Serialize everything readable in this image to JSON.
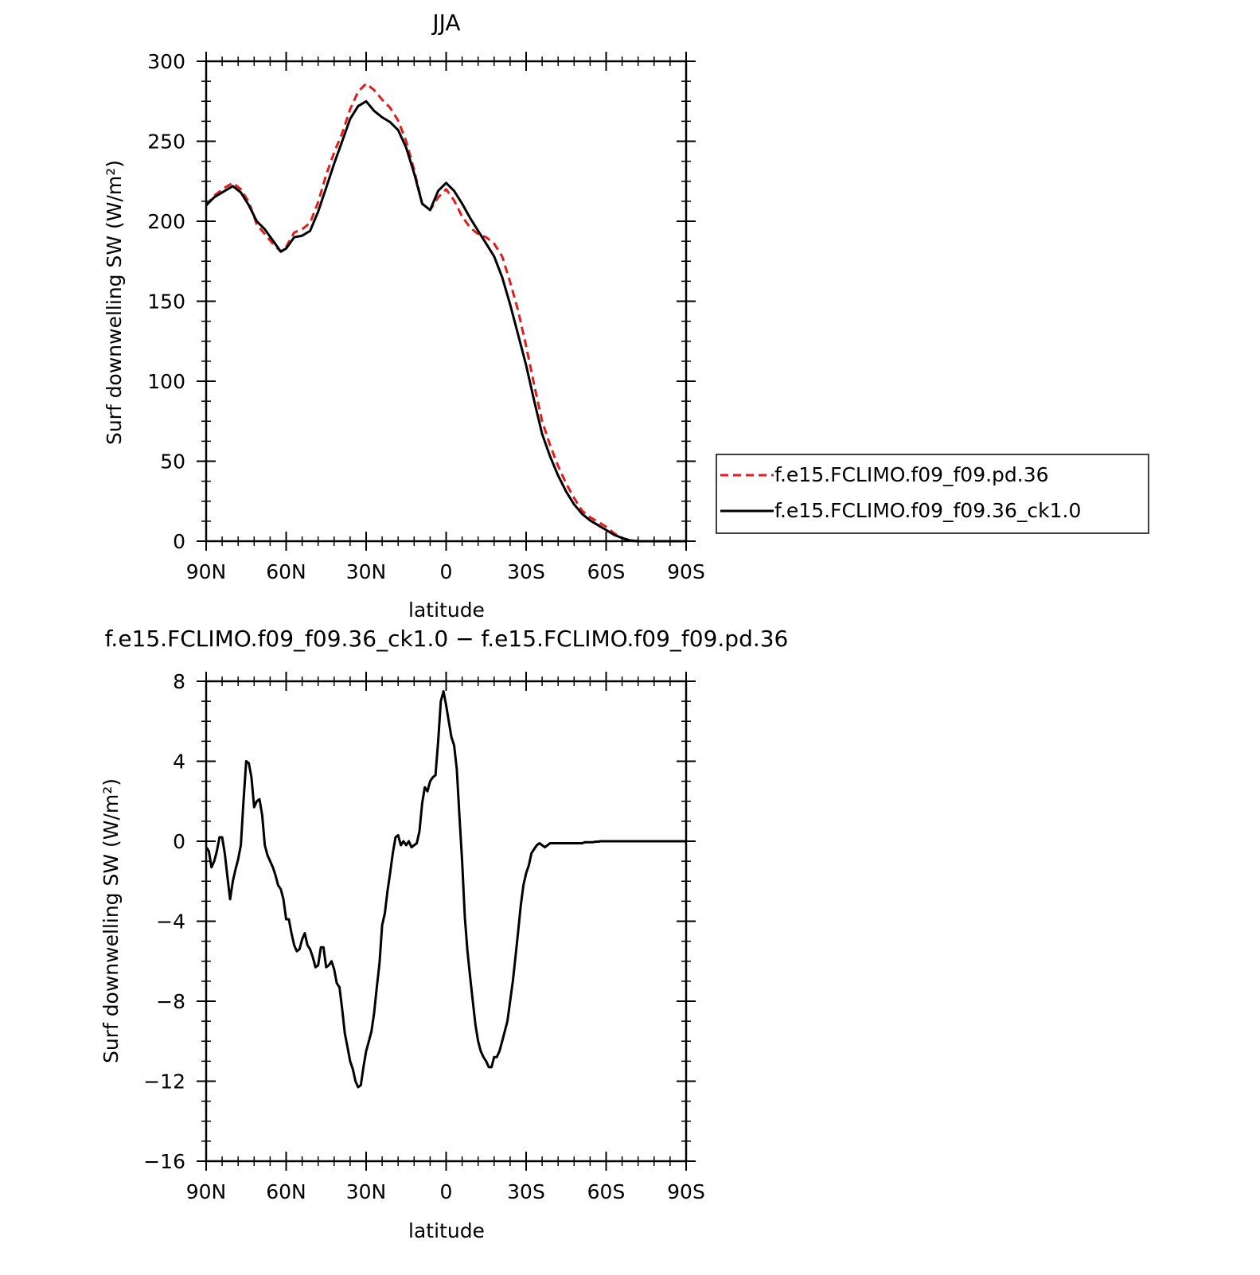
{
  "chart_data": [
    {
      "type": "line",
      "title": "JJA",
      "xlabel": "latitude",
      "ylabel": "Surf downwelling SW (W/m²)",
      "xlim": [
        90,
        -90
      ],
      "ylim": [
        0,
        300
      ],
      "x_ticks": [
        90,
        60,
        30,
        0,
        -30,
        -60,
        -90
      ],
      "x_tick_labels": [
        "90N",
        "60N",
        "30N",
        "0",
        "30S",
        "60S",
        "90S"
      ],
      "y_ticks": [
        0,
        50,
        100,
        150,
        200,
        250,
        300
      ],
      "y_tick_labels": [
        "0",
        "50",
        "100",
        "150",
        "200",
        "250",
        "300"
      ],
      "legend_position": "right",
      "series": [
        {
          "name": "f.e15.FCLIMO.f09_f09.pd.36",
          "color": "#e41a1c",
          "dash": "dashed",
          "x": [
            90,
            87,
            83,
            80,
            77,
            74,
            71,
            68,
            65,
            62,
            60,
            57,
            54,
            51,
            48,
            45,
            42,
            39,
            36,
            33,
            30,
            27,
            24,
            21,
            18,
            15,
            12,
            9,
            6,
            3,
            0,
            -3,
            -6,
            -9,
            -12,
            -15,
            -18,
            -21,
            -24,
            -27,
            -30,
            -33,
            -36,
            -39,
            -42,
            -45,
            -48,
            -51,
            -54,
            -57,
            -60,
            -63,
            -66,
            -69,
            -72,
            -75,
            -78,
            -81,
            -84,
            -87,
            -90
          ],
          "y": [
            210,
            216,
            221,
            224,
            220,
            212,
            198,
            192,
            186,
            181,
            184,
            193,
            195,
            199,
            212,
            229,
            243,
            255,
            270,
            281,
            286,
            282,
            276,
            271,
            263,
            250,
            232,
            211,
            207,
            215,
            220,
            213,
            203,
            196,
            192,
            190,
            186,
            178,
            162,
            144,
            122,
            98,
            75,
            60,
            47,
            36,
            27,
            19,
            15,
            12,
            9,
            5,
            2,
            0.5,
            0,
            0,
            0,
            0,
            0,
            0,
            0
          ]
        },
        {
          "name": "f.e15.FCLIMO.f09_f09.36_ck1.0",
          "color": "#000000",
          "dash": "solid",
          "x": [
            90,
            87,
            83,
            80,
            77,
            74,
            71,
            68,
            65,
            62,
            60,
            57,
            54,
            51,
            48,
            45,
            42,
            39,
            36,
            33,
            30,
            27,
            24,
            21,
            18,
            15,
            12,
            9,
            6,
            3,
            0,
            -3,
            -6,
            -9,
            -12,
            -15,
            -18,
            -21,
            -24,
            -27,
            -30,
            -33,
            -36,
            -39,
            -42,
            -45,
            -48,
            -51,
            -54,
            -57,
            -60,
            -63,
            -66,
            -69,
            -72,
            -75,
            -78,
            -81,
            -84,
            -87,
            -90
          ],
          "y": [
            210,
            215,
            219,
            222,
            218,
            210,
            200,
            195,
            188,
            181,
            183,
            190,
            191,
            194,
            206,
            221,
            236,
            250,
            264,
            272,
            275,
            269,
            265,
            262,
            257,
            246,
            230,
            211,
            207,
            219,
            224,
            219,
            211,
            202,
            194,
            186,
            178,
            165,
            148,
            129,
            110,
            88,
            67,
            53,
            41,
            31,
            23,
            17,
            13,
            10,
            7,
            4,
            2,
            0.5,
            0,
            0,
            0,
            0,
            0,
            0,
            0
          ]
        }
      ]
    },
    {
      "type": "line",
      "title": "f.e15.FCLIMO.f09_f09.36_ck1.0 − f.e15.FCLIMO.f09_f09.pd.36",
      "xlabel": "latitude",
      "ylabel": "Surf downwelling SW (W/m²)",
      "xlim": [
        90,
        -90
      ],
      "ylim": [
        -16,
        8
      ],
      "x_ticks": [
        90,
        60,
        30,
        0,
        -30,
        -60,
        -90
      ],
      "x_tick_labels": [
        "90N",
        "60N",
        "30N",
        "0",
        "30S",
        "60S",
        "90S"
      ],
      "y_ticks": [
        -16,
        -12,
        -8,
        -4,
        0,
        4,
        8
      ],
      "y_tick_labels": [
        "−16",
        "−12",
        "−8",
        "−4",
        "0",
        "4",
        "8"
      ],
      "series": [
        {
          "color": "#000000",
          "dash": "solid",
          "x": [
            90,
            89,
            88,
            87,
            86,
            85,
            84,
            83,
            82,
            81,
            80,
            79,
            78,
            77,
            76,
            75,
            74,
            73,
            72,
            71,
            70,
            69,
            68,
            67,
            66,
            65,
            64,
            63,
            62,
            61,
            60,
            59,
            58,
            57,
            56,
            55,
            54,
            53,
            52,
            51,
            50,
            49,
            48,
            47,
            46,
            45,
            44,
            43,
            42,
            41,
            40,
            39,
            38,
            37,
            36,
            35,
            34,
            33,
            32,
            31,
            30,
            29,
            28,
            27,
            26,
            25,
            24,
            23,
            22,
            21,
            20,
            19,
            18,
            17,
            16,
            15,
            14,
            13,
            12,
            11,
            10,
            9,
            8,
            7,
            6,
            5,
            4,
            3,
            2,
            1,
            0,
            -1,
            -2,
            -3,
            -4,
            -5,
            -6,
            -7,
            -8,
            -9,
            -10,
            -11,
            -12,
            -13,
            -14,
            -15,
            -16,
            -17,
            -18,
            -19,
            -20,
            -21,
            -22,
            -23,
            -24,
            -25,
            -26,
            -27,
            -28,
            -29,
            -30,
            -31,
            -32,
            -33,
            -34,
            -35,
            -36,
            -37,
            -38,
            -39,
            -40,
            -41,
            -42,
            -43,
            -44,
            -45,
            -46,
            -47,
            -48,
            -49,
            -50,
            -51,
            -52,
            -53,
            -54,
            -55,
            -56,
            -57,
            -58,
            -59,
            -60,
            -65,
            -70,
            -75,
            -80,
            -85,
            -90
          ],
          "y": [
            -0.3,
            -0.5,
            -1.3,
            -1.0,
            -0.5,
            0.2,
            0.2,
            -0.6,
            -1.8,
            -2.9,
            -2.0,
            -1.4,
            -0.9,
            -0.2,
            2.0,
            4.0,
            3.9,
            3.2,
            1.7,
            2.0,
            2.1,
            1.3,
            -0.2,
            -0.7,
            -1.0,
            -1.3,
            -1.7,
            -2.2,
            -2.4,
            -2.9,
            -3.9,
            -3.9,
            -4.6,
            -5.2,
            -5.5,
            -5.4,
            -4.9,
            -4.6,
            -5.2,
            -5.4,
            -5.8,
            -6.3,
            -6.2,
            -5.3,
            -5.3,
            -6.3,
            -6.2,
            -6.0,
            -6.4,
            -7.1,
            -7.3,
            -8.4,
            -9.6,
            -10.3,
            -11.0,
            -11.4,
            -12.0,
            -12.3,
            -12.2,
            -11.3,
            -10.5,
            -10.0,
            -9.5,
            -8.6,
            -7.3,
            -6.1,
            -4.2,
            -3.6,
            -2.5,
            -1.6,
            -0.6,
            0.2,
            0.3,
            -0.2,
            0.0,
            -0.2,
            0.0,
            -0.3,
            -0.2,
            -0.1,
            0.5,
            1.9,
            2.7,
            2.5,
            3.0,
            3.2,
            3.3,
            5.0,
            7.0,
            7.5,
            6.8,
            6.0,
            5.2,
            4.8,
            3.6,
            1.2,
            -1.0,
            -3.8,
            -5.5,
            -6.8,
            -8.0,
            -9.2,
            -10.0,
            -10.5,
            -10.8,
            -11.0,
            -11.3,
            -11.3,
            -10.8,
            -10.8,
            -10.5,
            -10.0,
            -9.5,
            -9.0,
            -8.0,
            -7.0,
            -5.8,
            -4.5,
            -3.2,
            -2.2,
            -1.6,
            -1.2,
            -0.6,
            -0.4,
            -0.2,
            -0.1,
            -0.2,
            -0.3,
            -0.2,
            -0.1,
            -0.1,
            -0.1,
            -0.1,
            -0.1,
            -0.1,
            -0.1,
            -0.1,
            -0.1,
            -0.1,
            -0.1,
            -0.1,
            -0.1,
            -0.05,
            -0.05,
            -0.05,
            -0.05,
            -0.02,
            -0.02,
            0,
            0,
            0,
            0,
            0,
            0,
            0,
            0,
            0
          ]
        }
      ]
    }
  ]
}
